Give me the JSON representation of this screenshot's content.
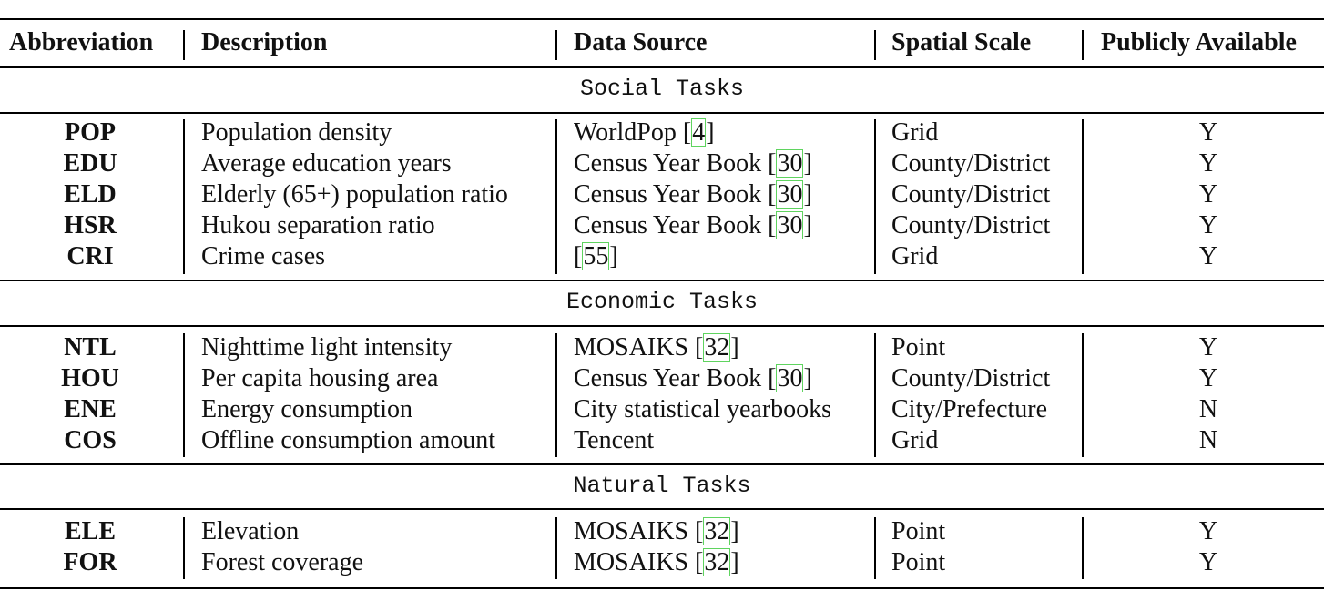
{
  "headers": {
    "abbreviation": "Abbreviation",
    "description": "Description",
    "data_source": "Data Source",
    "spatial_scale": "Spatial Scale",
    "publicly_available": "Publicly Available"
  },
  "sections": [
    {
      "title": "Social Tasks",
      "rows": [
        {
          "abbr": "POP",
          "desc": "Population density",
          "src": "WorldPop",
          "cite": "4",
          "scale": "Grid",
          "pub": "Y"
        },
        {
          "abbr": "EDU",
          "desc": "Average education years",
          "src": "Census Year Book",
          "cite": "30",
          "scale": "County/District",
          "pub": "Y"
        },
        {
          "abbr": "ELD",
          "desc": "Elderly (65+) population ratio",
          "src": "Census Year Book",
          "cite": "30",
          "scale": "County/District",
          "pub": "Y"
        },
        {
          "abbr": "HSR",
          "desc": "Hukou separation ratio",
          "src": "Census Year Book",
          "cite": "30",
          "scale": "County/District",
          "pub": "Y"
        },
        {
          "abbr": "CRI",
          "desc": "Crime cases",
          "src": "",
          "cite": "55",
          "scale": "Grid",
          "pub": "Y"
        }
      ]
    },
    {
      "title": "Economic Tasks",
      "rows": [
        {
          "abbr": "NTL",
          "desc": "Nighttime light intensity",
          "src": "MOSAIKS",
          "cite": "32",
          "scale": "Point",
          "pub": "Y"
        },
        {
          "abbr": "HOU",
          "desc": "Per capita housing area",
          "src": "Census Year Book",
          "cite": "30",
          "scale": "County/District",
          "pub": "Y"
        },
        {
          "abbr": "ENE",
          "desc": "Energy consumption",
          "src": "City statistical yearbooks",
          "cite": "",
          "scale": "City/Prefecture",
          "pub": "N"
        },
        {
          "abbr": "COS",
          "desc": "Offline consumption amount",
          "src": "Tencent",
          "cite": "",
          "scale": "Grid",
          "pub": "N"
        }
      ]
    },
    {
      "title": "Natural Tasks",
      "rows": [
        {
          "abbr": "ELE",
          "desc": "Elevation",
          "src": "MOSAIKS",
          "cite": "32",
          "scale": "Point",
          "pub": "Y"
        },
        {
          "abbr": "FOR",
          "desc": "Forest coverage",
          "src": "MOSAIKS",
          "cite": "32",
          "scale": "Point",
          "pub": "Y"
        }
      ]
    }
  ]
}
